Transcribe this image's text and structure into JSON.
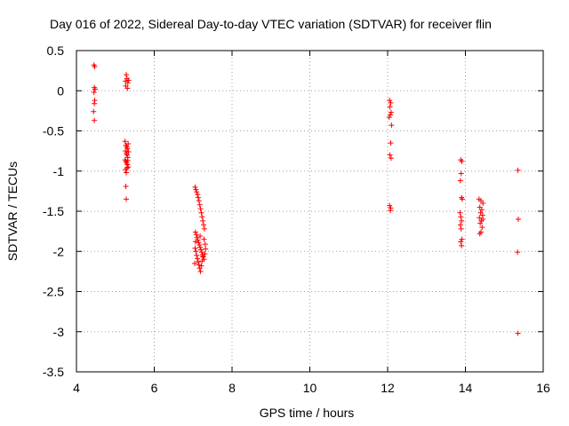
{
  "chart_data": {
    "type": "scatter",
    "title": "Day 016 of 2022, Sidereal Day-to-day VTEC variation (SDTVAR) for receiver flin",
    "xlabel": "GPS time / hours",
    "ylabel": "SDTVAR / TECUs",
    "xlim": [
      4,
      16
    ],
    "ylim": [
      -3.5,
      0.5
    ],
    "xticks": [
      4,
      6,
      8,
      10,
      12,
      14,
      16
    ],
    "yticks": [
      0.5,
      0,
      -0.5,
      -1,
      -1.5,
      -2,
      -2.5,
      -3,
      -3.5
    ],
    "xtick_labels": [
      "4",
      "6",
      "8",
      "10",
      "12",
      "14",
      "16"
    ],
    "ytick_labels": [
      "0.5",
      "0",
      "-0.5",
      "-1",
      "-1.5",
      "-2",
      "-2.5",
      "-3",
      "-3.5"
    ],
    "grid": true,
    "marker": "plus",
    "color": "#ff0000",
    "series": [
      {
        "name": "SDTVAR",
        "points": [
          [
            4.45,
            0.32
          ],
          [
            4.47,
            0.3
          ],
          [
            4.46,
            0.04
          ],
          [
            4.48,
            0.02
          ],
          [
            4.45,
            -0.02
          ],
          [
            4.47,
            -0.12
          ],
          [
            4.46,
            -0.16
          ],
          [
            4.44,
            -0.26
          ],
          [
            4.46,
            -0.37
          ],
          [
            5.26,
            0.12
          ],
          [
            5.28,
            0.2
          ],
          [
            5.3,
            0.15
          ],
          [
            5.32,
            0.1
          ],
          [
            5.27,
            0.06
          ],
          [
            5.31,
            0.03
          ],
          [
            5.34,
            0.13
          ],
          [
            5.25,
            -0.63
          ],
          [
            5.27,
            -0.68
          ],
          [
            5.29,
            -0.7
          ],
          [
            5.31,
            -0.72
          ],
          [
            5.33,
            -0.66
          ],
          [
            5.26,
            -0.75
          ],
          [
            5.28,
            -0.78
          ],
          [
            5.3,
            -0.8
          ],
          [
            5.32,
            -0.83
          ],
          [
            5.34,
            -0.76
          ],
          [
            5.25,
            -0.86
          ],
          [
            5.27,
            -0.88
          ],
          [
            5.29,
            -0.9
          ],
          [
            5.31,
            -0.92
          ],
          [
            5.33,
            -0.95
          ],
          [
            5.26,
            -0.98
          ],
          [
            5.28,
            -1.02
          ],
          [
            5.3,
            -0.96
          ],
          [
            5.32,
            -0.87
          ],
          [
            5.27,
            -1.19
          ],
          [
            5.28,
            -1.35
          ],
          [
            7.05,
            -1.2
          ],
          [
            7.07,
            -1.23
          ],
          [
            7.09,
            -1.26
          ],
          [
            7.11,
            -1.29
          ],
          [
            7.13,
            -1.33
          ],
          [
            7.15,
            -1.37
          ],
          [
            7.17,
            -1.42
          ],
          [
            7.19,
            -1.47
          ],
          [
            7.21,
            -1.52
          ],
          [
            7.23,
            -1.57
          ],
          [
            7.25,
            -1.62
          ],
          [
            7.27,
            -1.67
          ],
          [
            7.29,
            -1.72
          ],
          [
            7.06,
            -1.76
          ],
          [
            7.08,
            -1.79
          ],
          [
            7.1,
            -1.83
          ],
          [
            7.12,
            -1.86
          ],
          [
            7.14,
            -1.89
          ],
          [
            7.16,
            -1.92
          ],
          [
            7.18,
            -1.95
          ],
          [
            7.2,
            -1.98
          ],
          [
            7.22,
            -2.01
          ],
          [
            7.24,
            -2.04
          ],
          [
            7.26,
            -2.07
          ],
          [
            7.28,
            -2.1
          ],
          [
            7.3,
            -2.03
          ],
          [
            7.32,
            -1.97
          ],
          [
            7.05,
            -1.96
          ],
          [
            7.07,
            -2.0
          ],
          [
            7.09,
            -2.05
          ],
          [
            7.11,
            -2.09
          ],
          [
            7.13,
            -2.13
          ],
          [
            7.15,
            -2.17
          ],
          [
            7.17,
            -2.21
          ],
          [
            7.19,
            -2.25
          ],
          [
            7.21,
            -2.18
          ],
          [
            7.23,
            -2.12
          ],
          [
            7.25,
            -2.06
          ],
          [
            7.04,
            -2.15
          ],
          [
            7.06,
            -1.88
          ],
          [
            7.18,
            -1.81
          ],
          [
            7.28,
            -1.85
          ],
          [
            7.31,
            -1.91
          ],
          [
            12.05,
            -0.12
          ],
          [
            12.08,
            -0.15
          ],
          [
            12.06,
            -0.2
          ],
          [
            12.09,
            -0.27
          ],
          [
            12.07,
            -0.3
          ],
          [
            12.04,
            -0.33
          ],
          [
            12.1,
            -0.43
          ],
          [
            12.08,
            -0.65
          ],
          [
            12.06,
            -0.8
          ],
          [
            12.09,
            -0.84
          ],
          [
            12.05,
            -1.43
          ],
          [
            12.08,
            -1.46
          ],
          [
            12.07,
            -1.49
          ],
          [
            13.88,
            -0.86
          ],
          [
            13.91,
            -0.88
          ],
          [
            13.89,
            -1.03
          ],
          [
            13.87,
            -1.12
          ],
          [
            13.9,
            -1.33
          ],
          [
            13.92,
            -1.35
          ],
          [
            13.86,
            -1.52
          ],
          [
            13.88,
            -1.57
          ],
          [
            13.9,
            -1.62
          ],
          [
            13.87,
            -1.67
          ],
          [
            13.89,
            -1.72
          ],
          [
            13.91,
            -1.85
          ],
          [
            13.88,
            -1.88
          ],
          [
            13.9,
            -1.93
          ],
          [
            14.35,
            -1.35
          ],
          [
            14.4,
            -1.37
          ],
          [
            14.45,
            -1.4
          ],
          [
            14.37,
            -1.45
          ],
          [
            14.42,
            -1.48
          ],
          [
            14.39,
            -1.52
          ],
          [
            14.44,
            -1.55
          ],
          [
            14.36,
            -1.58
          ],
          [
            14.41,
            -1.62
          ],
          [
            14.38,
            -1.65
          ],
          [
            14.43,
            -1.7
          ],
          [
            14.4,
            -1.76
          ],
          [
            14.37,
            -1.78
          ],
          [
            14.45,
            -1.6
          ],
          [
            15.35,
            -0.99
          ],
          [
            15.36,
            -1.6
          ],
          [
            15.34,
            -2.01
          ],
          [
            15.35,
            -3.02
          ]
        ]
      }
    ]
  }
}
